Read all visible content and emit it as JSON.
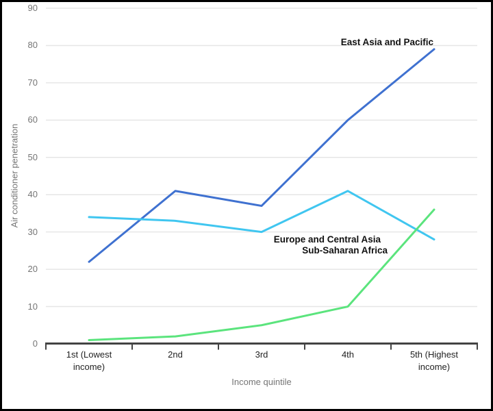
{
  "chart_data": {
    "type": "line",
    "title": "",
    "categories": [
      "1st (Lowest income)",
      "2nd",
      "3rd",
      "4th",
      "5th (Highest income)"
    ],
    "series": [
      {
        "name": "East Asia and Pacific",
        "color": "#3f71d0",
        "values": [
          22,
          41,
          37,
          60,
          79
        ]
      },
      {
        "name": "Europe and Central Asia",
        "color": "#40c6f0",
        "values": [
          34,
          33,
          30,
          41,
          28
        ]
      },
      {
        "name": "Sub-Saharan Africa",
        "color": "#5be47d",
        "values": [
          1,
          2,
          5,
          10,
          36
        ]
      }
    ],
    "xlabel": "Income quintile",
    "ylabel": "Air conditioner penetration",
    "ylim": [
      0,
      90
    ],
    "yticks": [
      0,
      10,
      20,
      30,
      40,
      50,
      60,
      70,
      80,
      90
    ],
    "grid": "horizontal",
    "legend": "inline-annotations",
    "style": {
      "gridline_color": "#e6e6e6",
      "axis_color": "#434343",
      "y_tick_color": "#757575",
      "x_tick_color": "#1f1f1f",
      "annotation_color": "#111111",
      "background": "#ffffff",
      "frame_color": "#000000"
    }
  }
}
